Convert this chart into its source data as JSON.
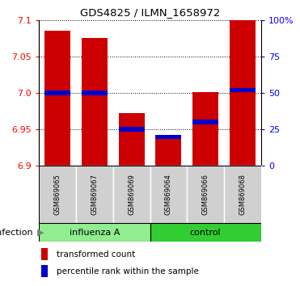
{
  "title": "GDS4825 / ILMN_1658972",
  "samples": [
    "GSM869065",
    "GSM869067",
    "GSM869069",
    "GSM869064",
    "GSM869066",
    "GSM869068"
  ],
  "groups": [
    "influenza A",
    "influenza A",
    "influenza A",
    "control",
    "control",
    "control"
  ],
  "transformed_count": [
    7.085,
    7.075,
    6.972,
    6.942,
    7.001,
    7.1
  ],
  "percentile_rank": [
    50,
    50,
    25,
    20,
    30,
    52
  ],
  "bar_color": "#cc0000",
  "percentile_color": "#0000cc",
  "ymin": 6.9,
  "ymax": 7.1,
  "yticks": [
    6.9,
    6.95,
    7.0,
    7.05,
    7.1
  ],
  "right_yticks": [
    0,
    25,
    50,
    75,
    100
  ],
  "right_yticklabels": [
    "0",
    "25",
    "50",
    "75",
    "100%"
  ],
  "infection_label": "infection",
  "bar_width": 0.7,
  "background_color": "#ffffff",
  "influenza_color": "#90EE90",
  "control_color": "#32CD32",
  "sample_bg_color": "#d0d0d0",
  "influenza_count": 3,
  "n_samples": 6
}
